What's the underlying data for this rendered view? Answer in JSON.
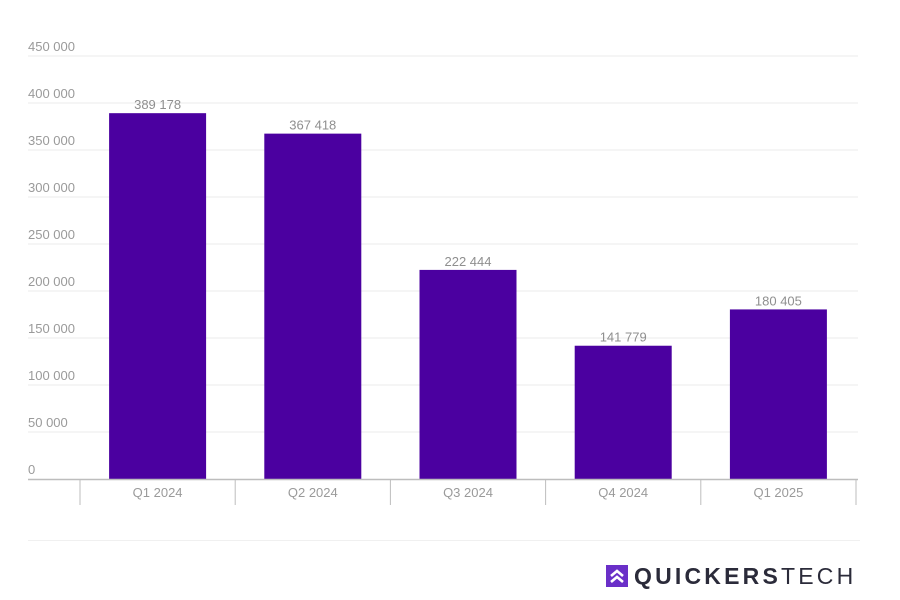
{
  "chart_data": {
    "type": "bar",
    "categories": [
      "Q1 2024",
      "Q2 2024",
      "Q3 2024",
      "Q4 2024",
      "Q1 2025"
    ],
    "values": [
      389178,
      367418,
      222444,
      141779,
      180405
    ],
    "value_labels": [
      "389 178",
      "367 418",
      "222 444",
      "141 779",
      "180 405"
    ],
    "y_ticks": [
      0,
      50000,
      100000,
      150000,
      200000,
      250000,
      300000,
      350000,
      400000,
      450000
    ],
    "y_tick_labels": [
      "0",
      "50 000",
      "100 000",
      "150 000",
      "200 000",
      "250 000",
      "300 000",
      "350 000",
      "400 000",
      "450 000"
    ],
    "ylim": [
      0,
      450000
    ],
    "grid": true,
    "bar_color": "#4b00a0",
    "title": "",
    "xlabel": "",
    "ylabel": ""
  },
  "branding": {
    "logo_text_strong": "QUICKERS",
    "logo_text_light": "TECH",
    "logo_icon": "double-chevron-up-icon",
    "logo_color": "#6a2fc8"
  }
}
